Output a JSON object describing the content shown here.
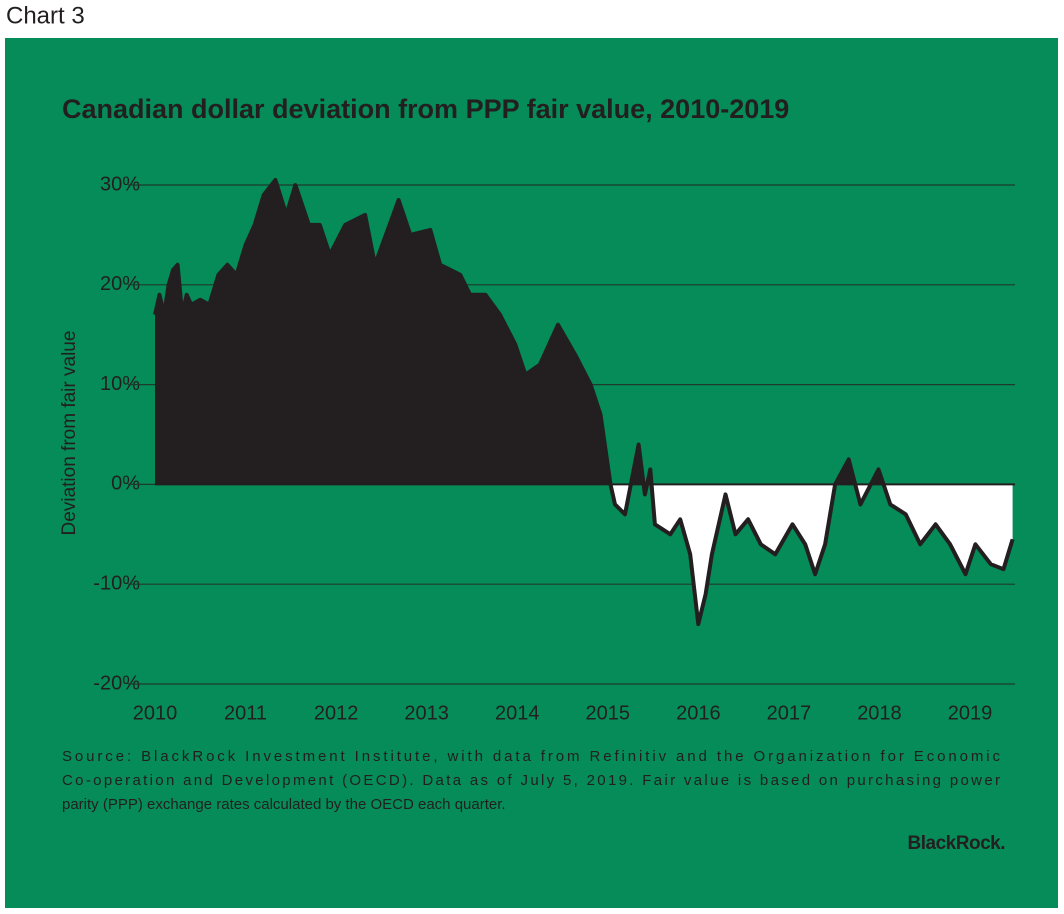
{
  "header": "Chart 3",
  "chart_data": {
    "type": "area",
    "title": "Canadian dollar deviation from PPP fair value, 2010-2019",
    "ylabel": "Deviation from fair value",
    "x": [
      2010.0,
      2010.05,
      2010.1,
      2010.15,
      2010.2,
      2010.25,
      2010.3,
      2010.35,
      2010.4,
      2010.5,
      2010.6,
      2010.7,
      2010.8,
      2010.9,
      2011.0,
      2011.1,
      2011.2,
      2011.33,
      2011.45,
      2011.55,
      2011.7,
      2011.82,
      2011.93,
      2012.1,
      2012.32,
      2012.43,
      2012.69,
      2012.82,
      2013.04,
      2013.15,
      2013.37,
      2013.48,
      2013.65,
      2013.81,
      2013.98,
      2014.09,
      2014.25,
      2014.45,
      2014.64,
      2014.81,
      2014.92,
      2015.03,
      2015.08,
      2015.19,
      2015.34,
      2015.41,
      2015.47,
      2015.52,
      2015.69,
      2015.8,
      2015.91,
      2016.0,
      2016.08,
      2016.15,
      2016.3,
      2016.41,
      2016.55,
      2016.69,
      2016.85,
      2017.04,
      2017.18,
      2017.29,
      2017.4,
      2017.51,
      2017.66,
      2017.79,
      2017.99,
      2018.12,
      2018.29,
      2018.45,
      2018.62,
      2018.78,
      2018.95,
      2019.06,
      2019.23,
      2019.37,
      2019.47
    ],
    "series": [
      {
        "name": "Deviation from fair value",
        "color": "#231f20",
        "values": [
          17,
          19,
          17,
          20,
          21.5,
          22,
          17,
          19,
          18,
          18.5,
          18,
          21,
          22,
          21,
          24,
          26,
          29,
          30.5,
          27,
          30,
          26,
          26,
          23,
          26,
          27,
          22,
          28.5,
          25,
          25.5,
          22,
          21,
          19,
          19,
          17,
          14,
          11,
          12,
          16,
          13,
          10,
          7,
          0,
          -2,
          -3,
          4,
          -1,
          1.5,
          -4,
          -5,
          -3.5,
          -7,
          -14,
          -11,
          -7,
          -1,
          -5,
          -3.5,
          -6,
          -7,
          -4,
          -6,
          -9,
          -6,
          0,
          2.5,
          -2,
          1.5,
          -2,
          -3,
          -6,
          -4,
          -6,
          -9,
          -6,
          -8,
          -8.5,
          -5.5
        ]
      }
    ],
    "above_color": "#231f20",
    "below_color": "#ffffff",
    "background": "#058c58",
    "xlim": [
      2010,
      2019.55
    ],
    "xticks": [
      2010,
      2011,
      2012,
      2013,
      2014,
      2015,
      2016,
      2017,
      2018,
      2019
    ],
    "ylim": [
      -20,
      30
    ],
    "yticks": [
      {
        "value": -20,
        "label": "-20%"
      },
      {
        "value": -10,
        "label": "-10%"
      },
      {
        "value": 0,
        "label": "0%"
      },
      {
        "value": 10,
        "label": "10%"
      },
      {
        "value": 20,
        "label": "20%"
      },
      {
        "value": 30,
        "label": "30%"
      }
    ],
    "grid": true,
    "source": [
      "Source: BlackRock Investment Institute, with data from Refinitiv and the Organization for Economic",
      "Co-operation and Development (OECD). Data as of July 5, 2019. Fair value is based on purchasing power",
      "parity (PPP) exchange rates calculated by the OECD each quarter."
    ],
    "brand": "BlackRock."
  }
}
